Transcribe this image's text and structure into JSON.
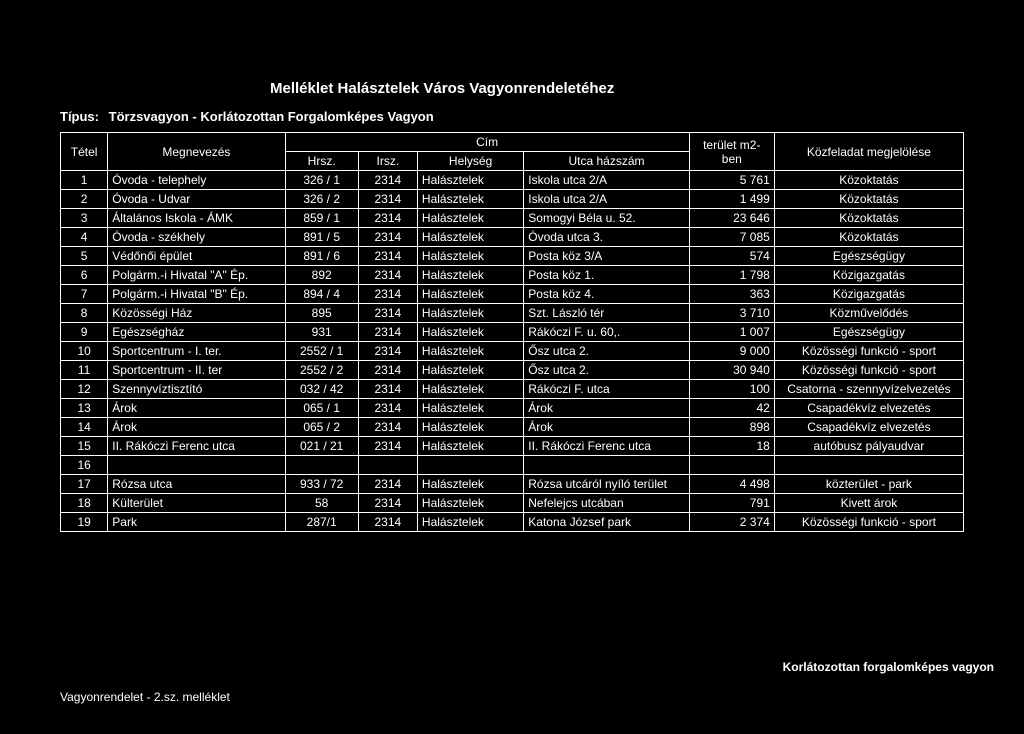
{
  "title": "Melléklet Halásztelek Város Vagyonrendeletéhez",
  "type_label": "Típus:",
  "type_value": "Törzsvagyon - Korlátozottan Forgalomképes Vagyon",
  "header": {
    "tetel": "Tétel",
    "megnevezes": "Megnevezés",
    "cim": "Cím",
    "hrsz": "Hrsz.",
    "irsz": "Irsz.",
    "helyseg": "Helység",
    "utca": "Utca házszám",
    "terulet": "terület m2-ben",
    "kozfeladat": "Közfeladat megjelölése"
  },
  "rows": [
    {
      "n": "1",
      "meg": "Óvoda - telephely",
      "hrsz": "326 / 1",
      "irsz": "2314",
      "hely": "Halásztelek",
      "utca": "Iskola utca 2/A",
      "ter": "5 761",
      "koz": "Közoktatás"
    },
    {
      "n": "2",
      "meg": "Óvoda - Udvar",
      "hrsz": "326 / 2",
      "irsz": "2314",
      "hely": "Halásztelek",
      "utca": "Iskola utca 2/A",
      "ter": "1 499",
      "koz": "Közoktatás"
    },
    {
      "n": "3",
      "meg": "Általános Iskola - ÁMK",
      "hrsz": "859 / 1",
      "irsz": "2314",
      "hely": "Halásztelek",
      "utca": "Somogyi Béla u. 52.",
      "ter": "23 646",
      "koz": "Közoktatás"
    },
    {
      "n": "4",
      "meg": "Óvoda - székhely",
      "hrsz": "891 / 5",
      "irsz": "2314",
      "hely": "Halásztelek",
      "utca": "Óvoda utca 3.",
      "ter": "7 085",
      "koz": "Közoktatás"
    },
    {
      "n": "5",
      "meg": "Védőnői épület",
      "hrsz": "891 / 6",
      "irsz": "2314",
      "hely": "Halásztelek",
      "utca": "Posta köz 3/A",
      "ter": "574",
      "koz": "Egészségügy"
    },
    {
      "n": "6",
      "meg": "Polgárm.-i Hivatal \"A\" Ép.",
      "hrsz": "892",
      "irsz": "2314",
      "hely": "Halásztelek",
      "utca": "Posta köz 1.",
      "ter": "1 798",
      "koz": "Közigazgatás"
    },
    {
      "n": "7",
      "meg": "Polgárm.-i Hivatal \"B\" Ép.",
      "hrsz": "894 / 4",
      "irsz": "2314",
      "hely": "Halásztelek",
      "utca": "Posta köz 4.",
      "ter": "363",
      "koz": "Közigazgatás"
    },
    {
      "n": "8",
      "meg": "Közösségi Ház",
      "hrsz": "895",
      "irsz": "2314",
      "hely": "Halásztelek",
      "utca": "Szt. László tér",
      "ter": "3 710",
      "koz": "Közművelődés"
    },
    {
      "n": "9",
      "meg": "Egészségház",
      "hrsz": "931",
      "irsz": "2314",
      "hely": "Halásztelek",
      "utca": "Rákóczi F. u. 60,.",
      "ter": "1 007",
      "koz": "Egészségügy"
    },
    {
      "n": "10",
      "meg": "Sportcentrum - I. ter.",
      "hrsz": "2552 / 1",
      "irsz": "2314",
      "hely": "Halásztelek",
      "utca": "Ősz utca 2.",
      "ter": "9 000",
      "koz": "Közösségi funkció - sport"
    },
    {
      "n": "11",
      "meg": "Sportcentrum - II. ter",
      "hrsz": "2552 / 2",
      "irsz": "2314",
      "hely": "Halásztelek",
      "utca": "Ősz utca 2.",
      "ter": "30 940",
      "koz": "Közösségi funkció - sport"
    },
    {
      "n": "12",
      "meg": "Szennyvíztisztító",
      "hrsz": "032 / 42",
      "irsz": "2314",
      "hely": "Halásztelek",
      "utca": "Rákóczi F. utca",
      "ter": "100",
      "koz": "Csatorna - szennyvízelvezetés"
    },
    {
      "n": "13",
      "meg": "Árok",
      "hrsz": "065 / 1",
      "irsz": "2314",
      "hely": "Halásztelek",
      "utca": "Árok",
      "ter": "42",
      "koz": "Csapadékvíz elvezetés"
    },
    {
      "n": "14",
      "meg": "Árok",
      "hrsz": "065 / 2",
      "irsz": "2314",
      "hely": "Halásztelek",
      "utca": "Árok",
      "ter": "898",
      "koz": "Csapadékvíz elvezetés"
    },
    {
      "n": "15",
      "meg": "II. Rákóczi Ferenc utca",
      "hrsz": "021 / 21",
      "irsz": "2314",
      "hely": "Halásztelek",
      "utca": "II. Rákóczi Ferenc utca",
      "ter": "18",
      "koz": "autóbusz pályaudvar"
    },
    {
      "n": "16",
      "meg": "",
      "hrsz": "",
      "irsz": "",
      "hely": "",
      "utca": "",
      "ter": "",
      "koz": ""
    },
    {
      "n": "17",
      "meg": "Rózsa utca",
      "hrsz": "933 / 72",
      "irsz": "2314",
      "hely": "Halásztelek",
      "utca": "Rózsa utcáról nyíló terület",
      "ter": "4 498",
      "koz": "közterület - park"
    },
    {
      "n": "18",
      "meg": "Külterület",
      "hrsz": "58",
      "irsz": "2314",
      "hely": "Halásztelek",
      "utca": "Nefelejcs utcában",
      "ter": "791",
      "koz": "Kivett árok"
    },
    {
      "n": "19",
      "meg": "Park",
      "hrsz": "287/1",
      "irsz": "2314",
      "hely": "Halásztelek",
      "utca": "Katona József park",
      "ter": "2 374",
      "koz": "Közösségi funkció - sport"
    }
  ],
  "footer_left": "Vagyonrendelet - 2.sz. melléklet",
  "footer_right": "Korlátozottan forgalomképes vagyon"
}
